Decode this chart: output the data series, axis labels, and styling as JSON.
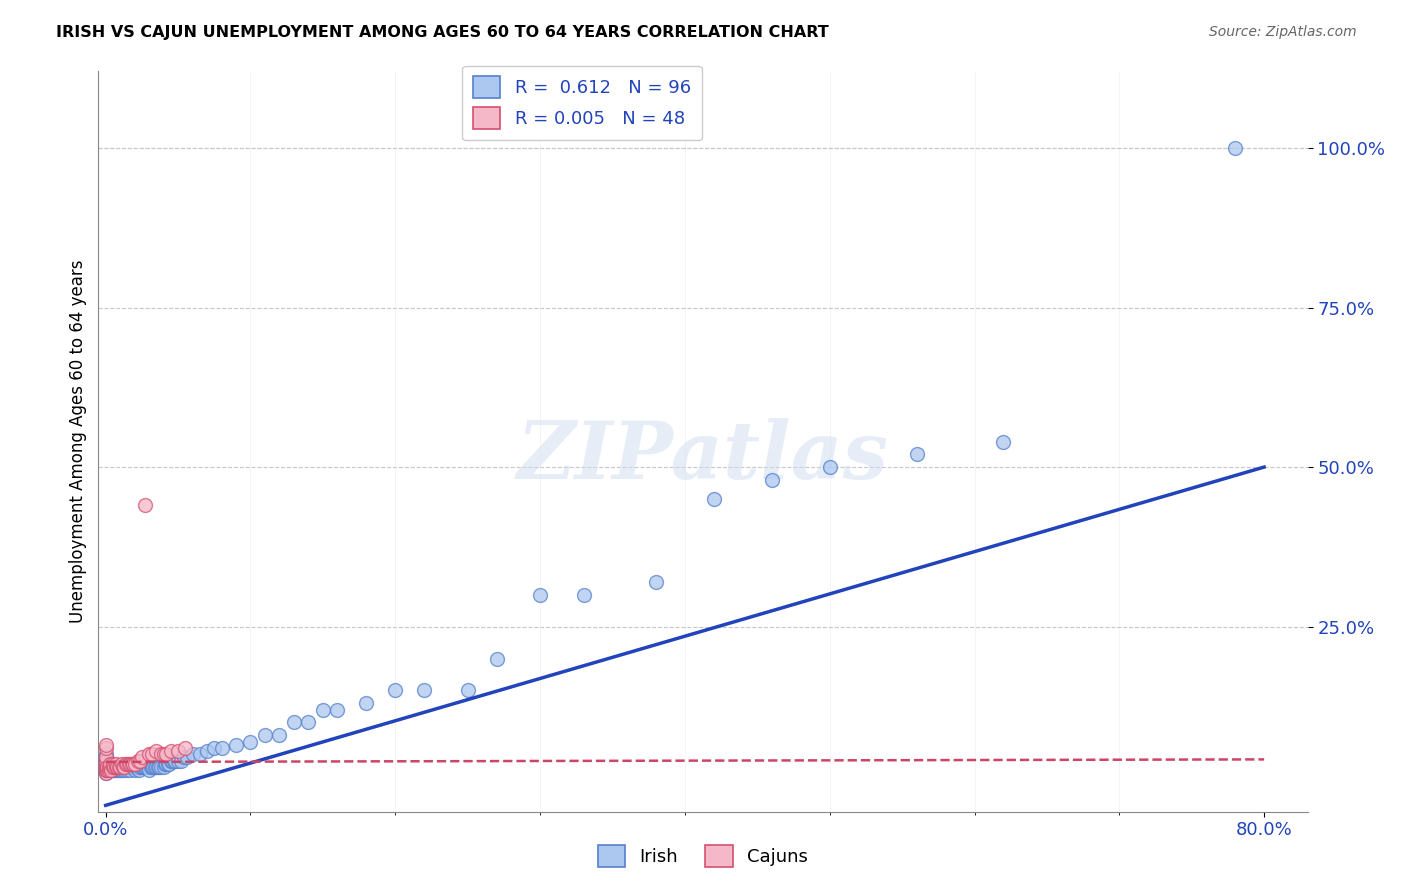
{
  "title": "IRISH VS CAJUN UNEMPLOYMENT AMONG AGES 60 TO 64 YEARS CORRELATION CHART",
  "source": "Source: ZipAtlas.com",
  "ylabel": "Unemployment Among Ages 60 to 64 years",
  "ytick_labels": [
    "100.0%",
    "75.0%",
    "50.0%",
    "25.0%"
  ],
  "ytick_values": [
    1.0,
    0.75,
    0.5,
    0.25
  ],
  "xlim": [
    -0.005,
    0.83
  ],
  "ylim": [
    -0.04,
    1.12
  ],
  "irish_R": 0.612,
  "irish_N": 96,
  "cajun_R": 0.005,
  "cajun_N": 48,
  "irish_color": "#adc8f0",
  "cajun_color": "#f5b8c8",
  "irish_edge_color": "#5580cc",
  "cajun_edge_color": "#d45070",
  "irish_line_color": "#2244bb",
  "cajun_line_color": "#cc4466",
  "watermark": "ZIPatlas",
  "background_color": "#ffffff",
  "irish_x": [
    0.0,
    0.0,
    0.0,
    0.0,
    0.0,
    0.0,
    0.0,
    0.0,
    0.0,
    0.0,
    0.001,
    0.001,
    0.002,
    0.002,
    0.003,
    0.003,
    0.004,
    0.004,
    0.005,
    0.005,
    0.006,
    0.006,
    0.007,
    0.007,
    0.008,
    0.009,
    0.01,
    0.01,
    0.011,
    0.012,
    0.013,
    0.014,
    0.015,
    0.016,
    0.017,
    0.018,
    0.019,
    0.02,
    0.021,
    0.022,
    0.023,
    0.024,
    0.025,
    0.026,
    0.027,
    0.028,
    0.029,
    0.03,
    0.031,
    0.032,
    0.033,
    0.034,
    0.035,
    0.036,
    0.037,
    0.038,
    0.04,
    0.041,
    0.042,
    0.043,
    0.044,
    0.045,
    0.046,
    0.047,
    0.048,
    0.05,
    0.052,
    0.054,
    0.056,
    0.06,
    0.065,
    0.07,
    0.075,
    0.08,
    0.09,
    0.1,
    0.11,
    0.12,
    0.13,
    0.14,
    0.15,
    0.16,
    0.18,
    0.2,
    0.22,
    0.25,
    0.27,
    0.3,
    0.33,
    0.38,
    0.42,
    0.46,
    0.5,
    0.56,
    0.62,
    0.78
  ],
  "irish_y": [
    0.02,
    0.025,
    0.025,
    0.03,
    0.03,
    0.035,
    0.04,
    0.04,
    0.045,
    0.05,
    0.025,
    0.03,
    0.03,
    0.035,
    0.025,
    0.03,
    0.025,
    0.03,
    0.025,
    0.03,
    0.025,
    0.03,
    0.025,
    0.03,
    0.025,
    0.025,
    0.025,
    0.03,
    0.025,
    0.03,
    0.025,
    0.03,
    0.025,
    0.03,
    0.025,
    0.03,
    0.03,
    0.025,
    0.03,
    0.03,
    0.025,
    0.03,
    0.03,
    0.03,
    0.03,
    0.03,
    0.03,
    0.025,
    0.03,
    0.03,
    0.03,
    0.03,
    0.03,
    0.03,
    0.03,
    0.03,
    0.03,
    0.035,
    0.035,
    0.035,
    0.035,
    0.04,
    0.04,
    0.04,
    0.04,
    0.04,
    0.04,
    0.045,
    0.045,
    0.05,
    0.05,
    0.055,
    0.06,
    0.06,
    0.065,
    0.07,
    0.08,
    0.08,
    0.1,
    0.1,
    0.12,
    0.12,
    0.13,
    0.15,
    0.15,
    0.15,
    0.2,
    0.3,
    0.3,
    0.32,
    0.45,
    0.48,
    0.5,
    0.52,
    0.54,
    1.0
  ],
  "cajun_x": [
    0.0,
    0.0,
    0.0,
    0.0,
    0.0,
    0.0,
    0.0,
    0.0,
    0.0,
    0.0,
    0.001,
    0.001,
    0.002,
    0.002,
    0.003,
    0.003,
    0.004,
    0.005,
    0.005,
    0.006,
    0.007,
    0.007,
    0.008,
    0.009,
    0.01,
    0.011,
    0.012,
    0.013,
    0.014,
    0.015,
    0.016,
    0.017,
    0.018,
    0.019,
    0.02,
    0.022,
    0.024,
    0.025,
    0.027,
    0.03,
    0.032,
    0.035,
    0.038,
    0.04,
    0.042,
    0.045,
    0.05,
    0.055
  ],
  "cajun_y": [
    0.02,
    0.025,
    0.025,
    0.03,
    0.03,
    0.035,
    0.04,
    0.045,
    0.06,
    0.065,
    0.025,
    0.03,
    0.025,
    0.03,
    0.03,
    0.035,
    0.025,
    0.03,
    0.035,
    0.03,
    0.03,
    0.035,
    0.03,
    0.03,
    0.03,
    0.035,
    0.03,
    0.03,
    0.035,
    0.035,
    0.035,
    0.035,
    0.035,
    0.035,
    0.035,
    0.04,
    0.04,
    0.045,
    0.44,
    0.05,
    0.05,
    0.055,
    0.05,
    0.05,
    0.05,
    0.055,
    0.055,
    0.06
  ],
  "irish_line_x": [
    0.0,
    0.8
  ],
  "irish_line_y": [
    -0.03,
    0.5
  ],
  "cajun_line_x": [
    0.0,
    0.8
  ],
  "cajun_line_y": [
    0.038,
    0.042
  ]
}
